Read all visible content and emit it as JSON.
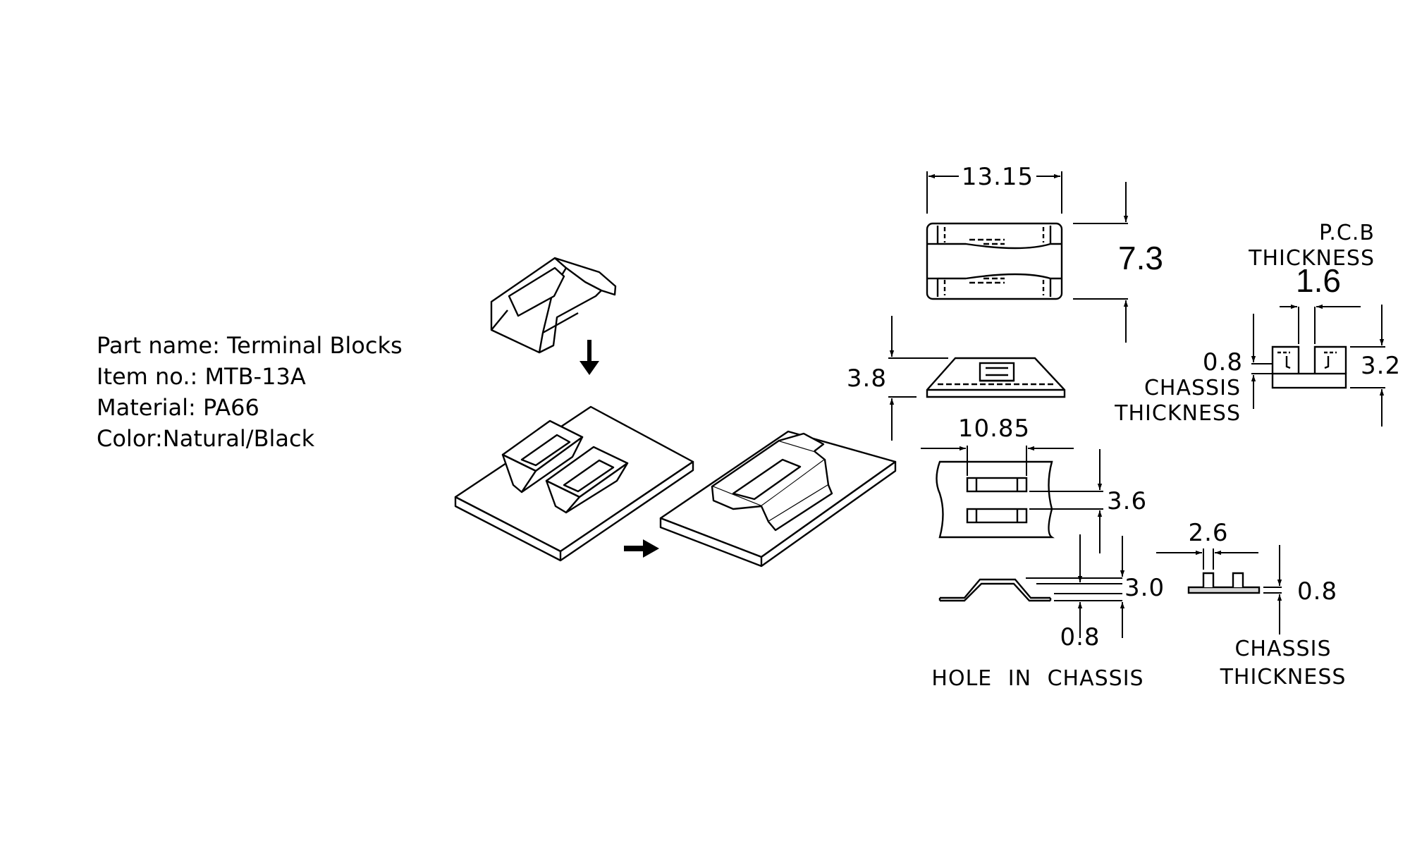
{
  "info": {
    "part_name": "Part name: Terminal Blocks",
    "item_no": "Item no.: MTB-13A",
    "material": "Material: PA66",
    "color": "Color:Natural/Black"
  },
  "dims": {
    "width_top": "13.15",
    "height_top": "7.3",
    "pcb_label_1": "P.C.B",
    "pcb_label_2": "THICKNESS",
    "pcb_value": "1.6",
    "side_height": "3.8",
    "left_chassis": "0.8",
    "chassis_label_1": "CHASSIS",
    "chassis_label_2": "THICKNESS",
    "right_height": "3.2",
    "hole_width": "10.85",
    "hole_pitch": "3.6",
    "clip_width": "2.6",
    "section_height": "3.0",
    "section_chassis": "0.8",
    "clip_chassis": "0.8",
    "hole_caption": "HOLE IN CHASSIS",
    "bottom_chassis_1": "CHASSIS",
    "bottom_chassis_2": "THICKNESS"
  }
}
